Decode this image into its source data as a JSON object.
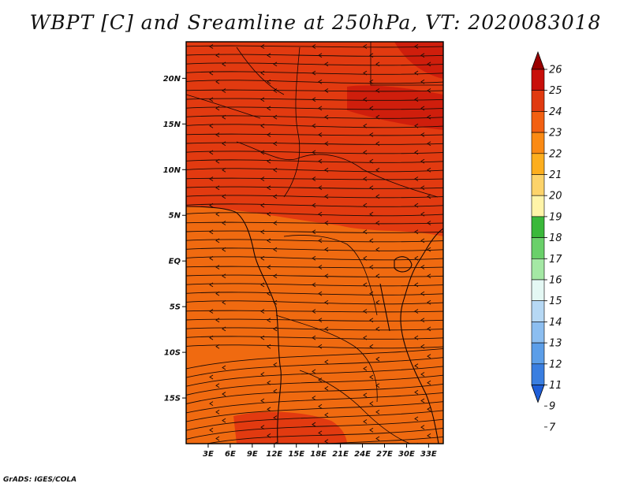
{
  "title": "WBPT [C] and Sreamline at 250hPa, VT: 2020083018",
  "footer": "GrADS: IGES/COLA",
  "map": {
    "lon_range": [
      0,
      35
    ],
    "lat_range": [
      -20,
      24
    ],
    "lon_ticks": [
      {
        "value": 3,
        "label": "3E"
      },
      {
        "value": 6,
        "label": "6E"
      },
      {
        "value": 9,
        "label": "9E"
      },
      {
        "value": 12,
        "label": "12E"
      },
      {
        "value": 15,
        "label": "15E"
      },
      {
        "value": 18,
        "label": "18E"
      },
      {
        "value": 21,
        "label": "21E"
      },
      {
        "value": 24,
        "label": "24E"
      },
      {
        "value": 27,
        "label": "27E"
      },
      {
        "value": 30,
        "label": "30E"
      },
      {
        "value": 33,
        "label": "33E"
      }
    ],
    "lat_ticks": [
      {
        "value": 20,
        "label": "20N"
      },
      {
        "value": 15,
        "label": "15N"
      },
      {
        "value": 10,
        "label": "10N"
      },
      {
        "value": 5,
        "label": "5N"
      },
      {
        "value": 0,
        "label": "EQ"
      },
      {
        "value": -5,
        "label": "5S"
      },
      {
        "value": -10,
        "label": "10S"
      },
      {
        "value": -15,
        "label": "15S"
      }
    ],
    "field_colors": {
      "v23": "#f06a10",
      "v24": "#e23a10",
      "v25": "#cf1e0c"
    }
  },
  "colorbar": {
    "levels": [
      "26",
      "25",
      "24",
      "23",
      "22",
      "21",
      "20",
      "19",
      "18",
      "17",
      "16",
      "15",
      "14",
      "13",
      "12",
      "11",
      "9",
      "7"
    ],
    "colors": [
      "#9a0000",
      "#c80f0a",
      "#e03a10",
      "#f26012",
      "#fa8a14",
      "#fdae1e",
      "#fdd36a",
      "#fff4a8",
      "#3ab83a",
      "#6ad06a",
      "#a4e8a4",
      "#e4f8f4",
      "#b6d8f4",
      "#8cbef0",
      "#5c9ee8",
      "#3a7ee0",
      "#1e5ed8"
    ]
  }
}
